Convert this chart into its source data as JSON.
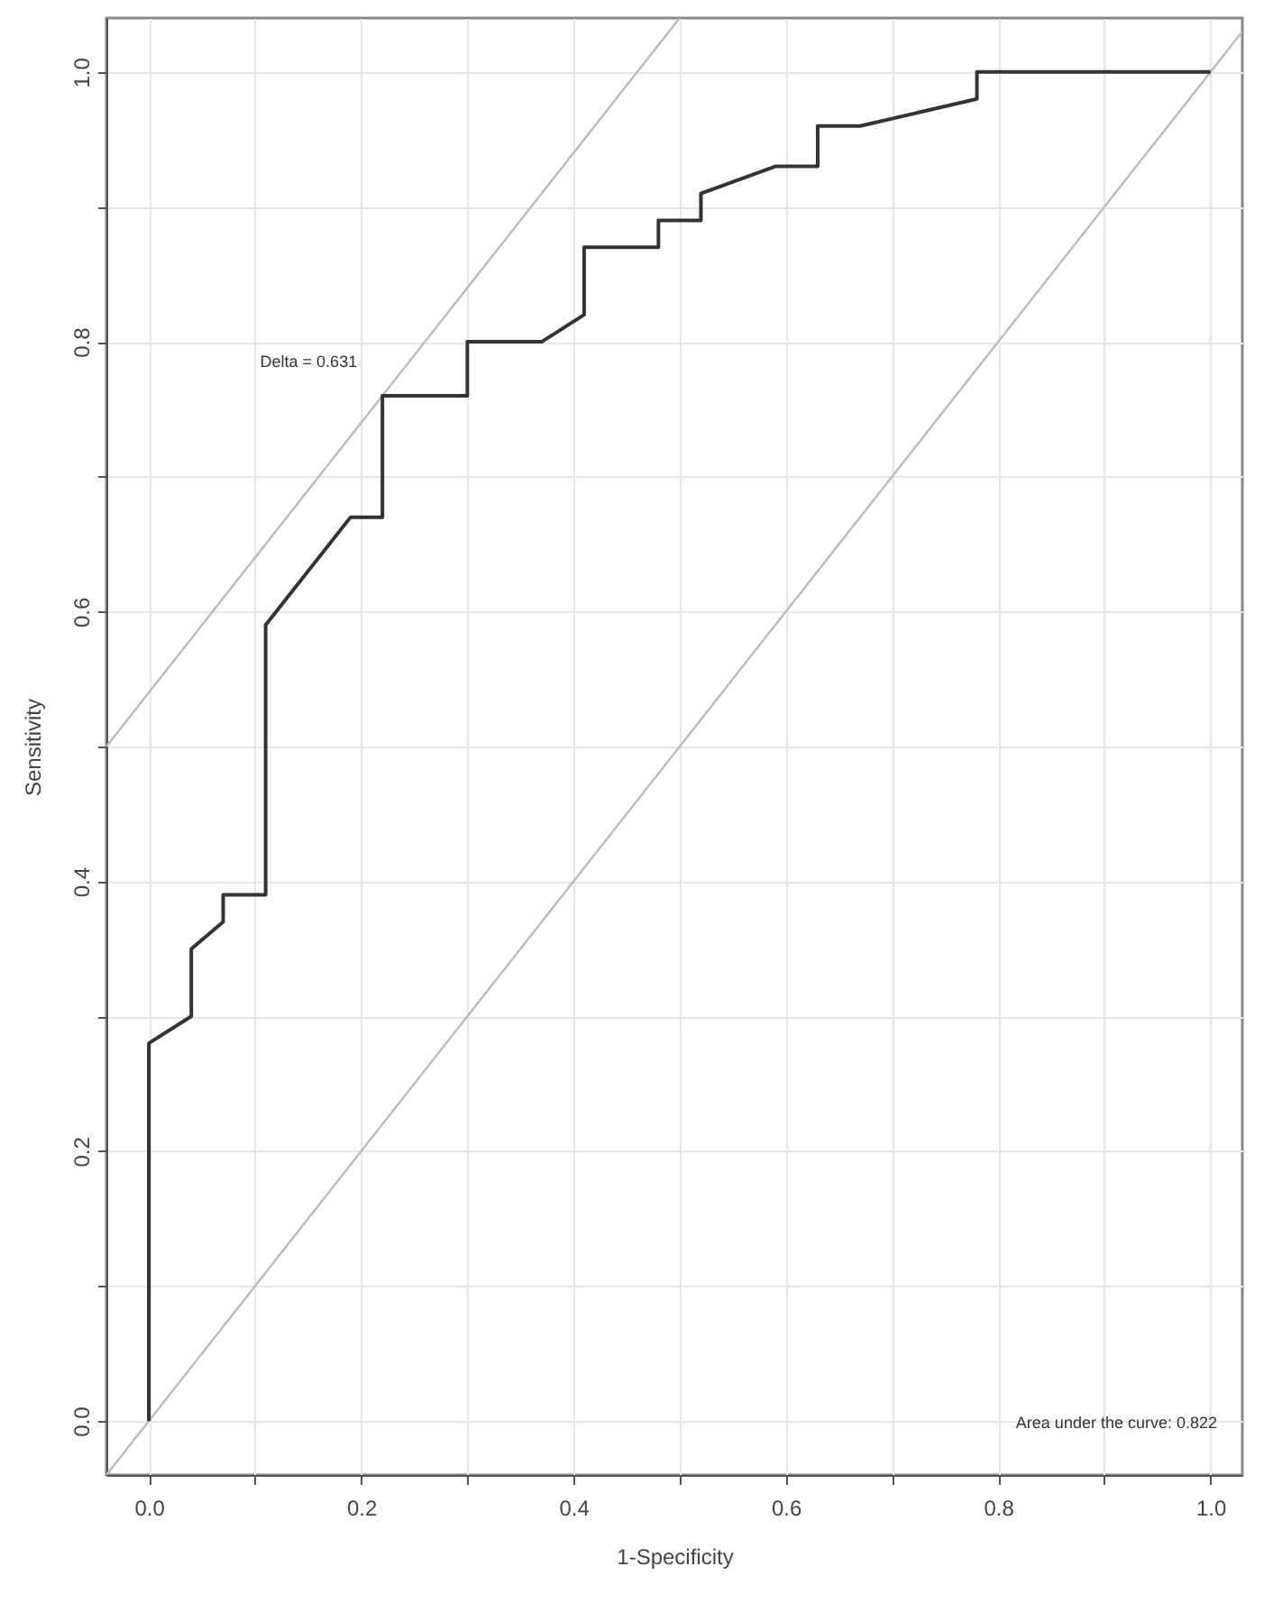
{
  "chart_data": {
    "type": "line",
    "xlabel": "1-Specificity",
    "ylabel": "Sensitivity",
    "xlim": [
      -0.04,
      1.03
    ],
    "ylim": [
      -0.04,
      1.04
    ],
    "xticks": [
      {
        "value": 0,
        "label": "0.0"
      },
      {
        "value": 0.1,
        "label": null
      },
      0.2,
      {
        "value": 0.3,
        "label": null
      },
      0.4,
      {
        "value": 0.5,
        "label": null
      },
      0.6,
      {
        "value": 0.7,
        "label": null
      },
      0.8,
      {
        "value": 0.9,
        "label": null
      },
      {
        "value": 1,
        "label": "1.0"
      }
    ],
    "yticks": [
      {
        "value": 0,
        "label": "0.0"
      },
      {
        "value": 0.1,
        "label": null
      },
      0.2,
      {
        "value": 0.3,
        "label": null
      },
      0.4,
      {
        "value": 0.5,
        "label": null
      },
      0.6,
      {
        "value": 0.7,
        "label": null
      },
      0.8,
      {
        "value": 0.9,
        "label": null
      },
      {
        "value": 1,
        "label": "1.0"
      }
    ],
    "grid": true,
    "line_style": "solid",
    "series": [
      {
        "color": "#bbbbbb",
        "x": [
          -0.04,
          1.03
        ],
        "values": [
          -0.04,
          1.03
        ]
      },
      {
        "color": "#bbbbbb",
        "x": [
          -0.04,
          0.5
        ],
        "values": [
          0.5,
          1.04
        ]
      },
      {
        "color": "#333333",
        "x": [
          0,
          0,
          0.04,
          0.04,
          0.07,
          0.07,
          0.11,
          0.11,
          0.19,
          0.22,
          0.22,
          0.3,
          0.3,
          0.37,
          0.41,
          0.41,
          0.48,
          0.48,
          0.52,
          0.52,
          0.59,
          0.63,
          0.63,
          0.67,
          0.78,
          0.78,
          1
        ],
        "values": [
          0,
          0.28,
          0.3,
          0.35,
          0.37,
          0.39,
          0.39,
          0.59,
          0.67,
          0.67,
          0.76,
          0.76,
          0.8,
          0.8,
          0.82,
          0.87,
          0.87,
          0.89,
          0.89,
          0.91,
          0.93,
          0.93,
          0.96,
          0.96,
          0.98,
          1,
          1
        ]
      }
    ],
    "annotations": [
      {
        "text": "Delta = 0.631",
        "x": 0.22,
        "y": 0.76
      },
      "Area under the curve: 0.822"
    ]
  }
}
